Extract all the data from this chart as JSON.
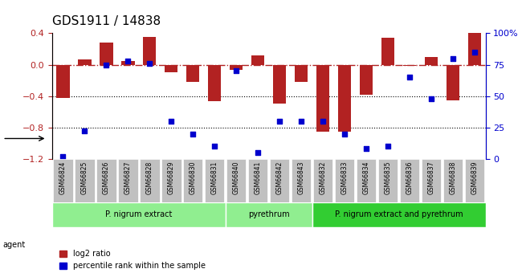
{
  "title": "GDS1911 / 14838",
  "samples": [
    "GSM66824",
    "GSM66825",
    "GSM66826",
    "GSM66827",
    "GSM66828",
    "GSM66829",
    "GSM66830",
    "GSM66831",
    "GSM66840",
    "GSM66841",
    "GSM66842",
    "GSM66843",
    "GSM66832",
    "GSM66833",
    "GSM66834",
    "GSM66835",
    "GSM66836",
    "GSM66837",
    "GSM66838",
    "GSM66839"
  ],
  "log2_ratio": [
    -0.42,
    0.07,
    0.28,
    0.05,
    0.35,
    -0.1,
    -0.22,
    -0.46,
    -0.07,
    0.12,
    -0.5,
    -0.22,
    -0.85,
    -0.85,
    -0.38,
    0.34,
    -0.02,
    0.1,
    -0.45,
    0.4
  ],
  "percentile": [
    2,
    22,
    75,
    78,
    76,
    30,
    20,
    10,
    70,
    5,
    30,
    30,
    30,
    20,
    8,
    10,
    65,
    48,
    80,
    85
  ],
  "bar_color": "#b22222",
  "dot_color": "#0000cd",
  "ref_line_color": "#b22222",
  "dot_line_color": "#0000cd",
  "ylim_left": [
    -1.2,
    0.4
  ],
  "ylim_right": [
    0,
    100
  ],
  "yticks_left": [
    -1.2,
    -0.8,
    -0.4,
    0.0,
    0.4
  ],
  "yticks_right": [
    0,
    25,
    50,
    75,
    100
  ],
  "groups": [
    {
      "label": "P. nigrum extract",
      "start": 0,
      "end": 8,
      "color": "#90EE90"
    },
    {
      "label": "pyrethrum",
      "start": 8,
      "end": 12,
      "color": "#90EE90"
    },
    {
      "label": "P. nigrum extract and pyrethrum",
      "start": 12,
      "end": 20,
      "color": "#32CD32"
    }
  ],
  "group_separator_color": "white",
  "agent_label": "agent",
  "legend_bar_label": "log2 ratio",
  "legend_dot_label": "percentile rank within the sample",
  "hline_ref": 0.0,
  "hlines_dotted": [
    -0.4,
    -0.8
  ],
  "bar_width": 0.6
}
